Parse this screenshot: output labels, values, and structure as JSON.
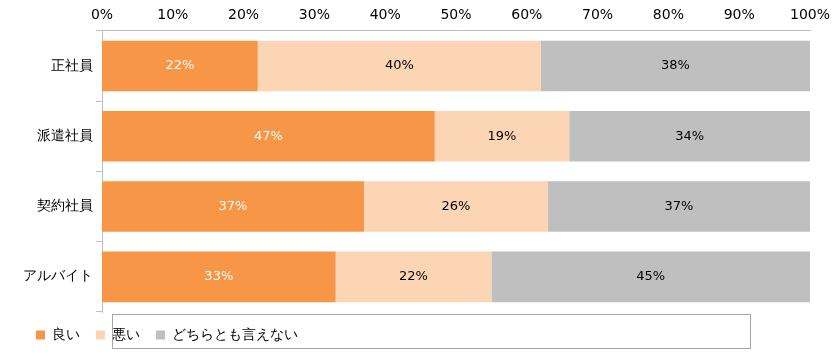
{
  "chart_data": {
    "type": "bar",
    "orientation": "horizontal",
    "stacked": true,
    "categories": [
      "正社員",
      "派遣社員",
      "契約社員",
      "アルバイト"
    ],
    "series": [
      {
        "name": "良い",
        "color": "#f79646",
        "values": [
          22,
          47,
          37,
          33
        ],
        "value_labels": [
          "22%",
          "47%",
          "37%",
          "33%"
        ]
      },
      {
        "name": "悪い",
        "color": "#fcd5b5",
        "values": [
          40,
          19,
          26,
          22
        ],
        "value_labels": [
          "40%",
          "19%",
          "26%",
          "22%"
        ]
      },
      {
        "name": "どちらとも言えない",
        "color": "#bfbfbf",
        "values": [
          38,
          34,
          37,
          45
        ],
        "value_labels": [
          "38%",
          "34%",
          "37%",
          "45%"
        ]
      }
    ],
    "xlim": [
      0,
      100
    ],
    "xticks": [
      {
        "value": 0,
        "label": "0%"
      },
      {
        "value": 10,
        "label": "10%"
      },
      {
        "value": 20,
        "label": "20%"
      },
      {
        "value": 30,
        "label": "30%"
      },
      {
        "value": 40,
        "label": "40%"
      },
      {
        "value": 50,
        "label": "50%"
      },
      {
        "value": 60,
        "label": "60%"
      },
      {
        "value": 70,
        "label": "70%"
      },
      {
        "value": 80,
        "label": "80%"
      },
      {
        "value": 90,
        "label": "90%"
      },
      {
        "value": 100,
        "label": "100%"
      }
    ],
    "grid": false,
    "legend": "bottom",
    "data_labels": true
  }
}
